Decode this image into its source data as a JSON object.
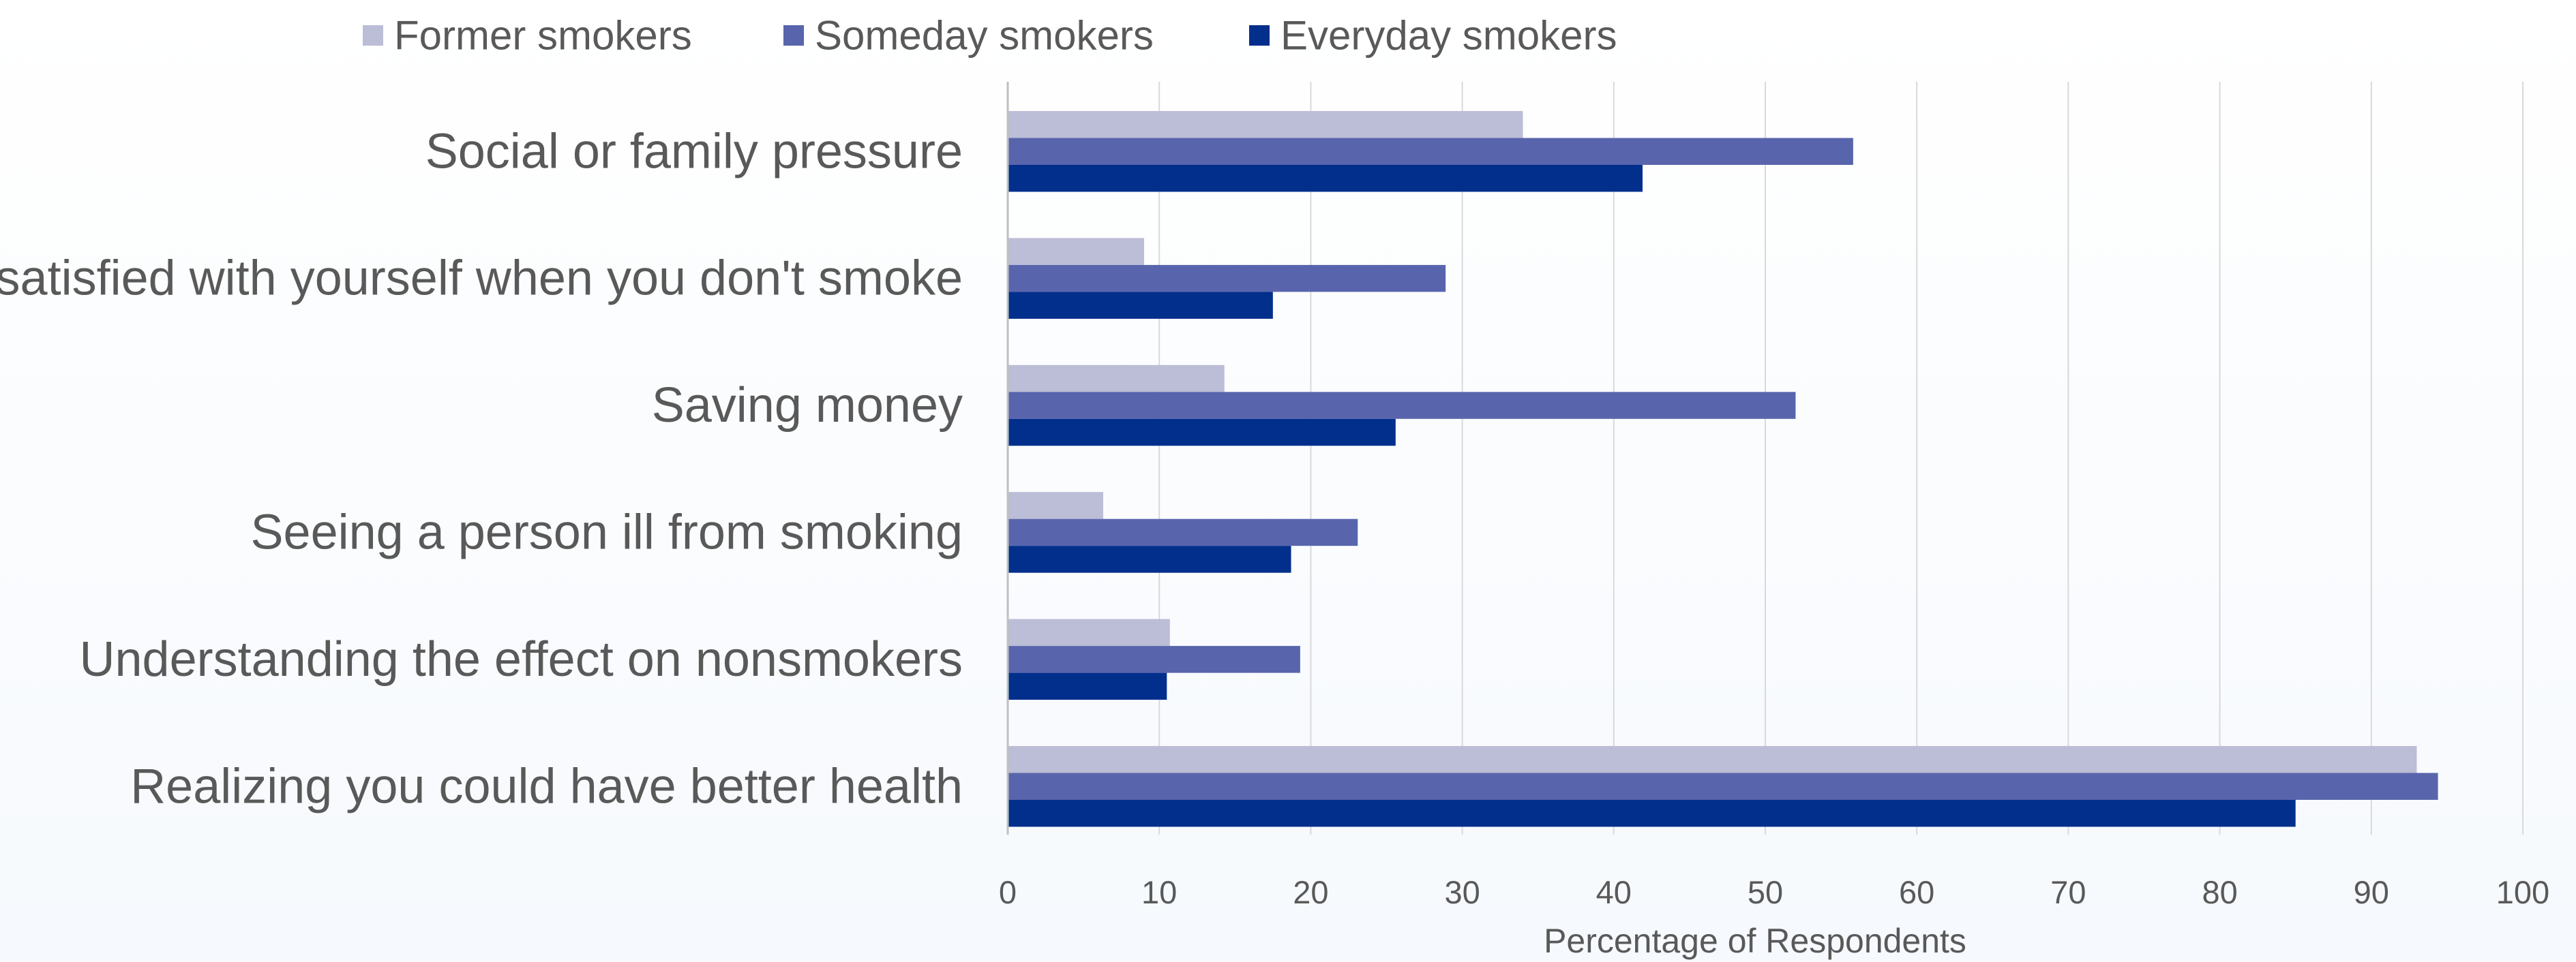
{
  "chart_data": {
    "type": "bar",
    "orientation": "horizontal",
    "categories": [
      "Social or family pressure",
      "Feeling satisfied with yourself when you don't smoke",
      "Saving money",
      "Seeing a person ill from smoking",
      "Understanding the effect on nonsmokers",
      "Realizing you could have better health"
    ],
    "series": [
      {
        "name": "Former smokers",
        "color": "#bcbdd6",
        "values": [
          34,
          9,
          14.3,
          6.3,
          10.7,
          93
        ]
      },
      {
        "name": "Someday smokers",
        "color": "#5865ac",
        "values": [
          55.8,
          28.9,
          52,
          23.1,
          19.3,
          94.4
        ]
      },
      {
        "name": "Everyday smokers",
        "color": "#022f8c",
        "values": [
          41.9,
          17.5,
          25.6,
          18.7,
          10.5,
          85
        ]
      }
    ],
    "title": "",
    "xlabel": "Percentage of Respondents",
    "ylabel": "",
    "xlim": [
      0,
      100
    ],
    "ticks": [
      0,
      10,
      20,
      30,
      40,
      50,
      60,
      70,
      80,
      90,
      100
    ],
    "grid": "vertical",
    "legend_position": "top"
  }
}
